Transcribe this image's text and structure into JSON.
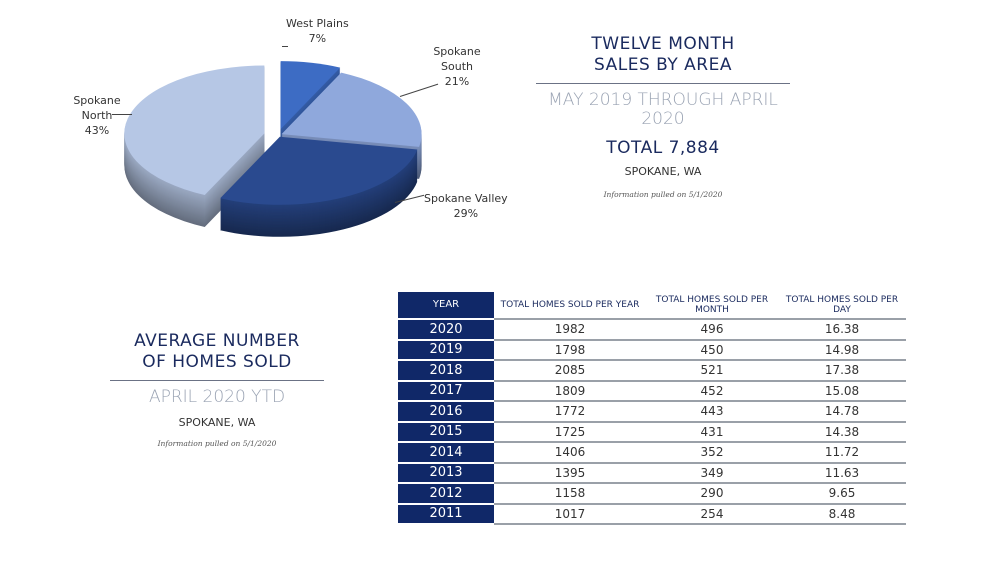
{
  "chart_data": {
    "type": "pie",
    "style": "3d exploded",
    "labels": [
      "West Plains",
      "Spokane South",
      "Spokane Valley",
      "Spokane North"
    ],
    "values": [
      7,
      21,
      29,
      43
    ],
    "value_labels": [
      "7%",
      "21%",
      "29%",
      "43%"
    ],
    "colors": [
      "#3d6cc4",
      "#8fa8dc",
      "#2a4a8f",
      "#b6c7e5"
    ],
    "title": "TWELVE MONTH SALES BY AREA"
  },
  "pie_panel": {
    "title_line1": "TWELVE MONTH",
    "title_line2": "SALES BY AREA",
    "subtitle": "MAY 2019 THROUGH APRIL 2020",
    "total": "TOTAL 7,884",
    "location": "SPOKANE, WA",
    "note": "Information pulled on 5/1/2020",
    "label_names": [
      "West Plains",
      "Spokane\nSouth",
      "Spokane Valley",
      "Spokane\nNorth"
    ]
  },
  "table_panel": {
    "title_line1": "AVERAGE NUMBER",
    "title_line2": "OF HOMES SOLD",
    "subtitle": "APRIL 2020 YTD",
    "location": "SPOKANE, WA",
    "note": "Information pulled on 5/1/2020"
  },
  "table": {
    "headers": [
      "YEAR",
      "TOTAL HOMES SOLD PER YEAR",
      "TOTAL HOMES SOLD PER MONTH",
      "TOTAL HOMES SOLD PER DAY"
    ],
    "rows": [
      [
        "2020",
        "1982",
        "496",
        "16.38"
      ],
      [
        "2019",
        "1798",
        "450",
        "14.98"
      ],
      [
        "2018",
        "2085",
        "521",
        "17.38"
      ],
      [
        "2017",
        "1809",
        "452",
        "15.08"
      ],
      [
        "2016",
        "1772",
        "443",
        "14.78"
      ],
      [
        "2015",
        "1725",
        "431",
        "14.38"
      ],
      [
        "2014",
        "1406",
        "352",
        "11.72"
      ],
      [
        "2013",
        "1395",
        "349",
        "11.63"
      ],
      [
        "2012",
        "1158",
        "290",
        "9.65"
      ],
      [
        "2011",
        "1017",
        "254",
        "8.48"
      ]
    ]
  }
}
